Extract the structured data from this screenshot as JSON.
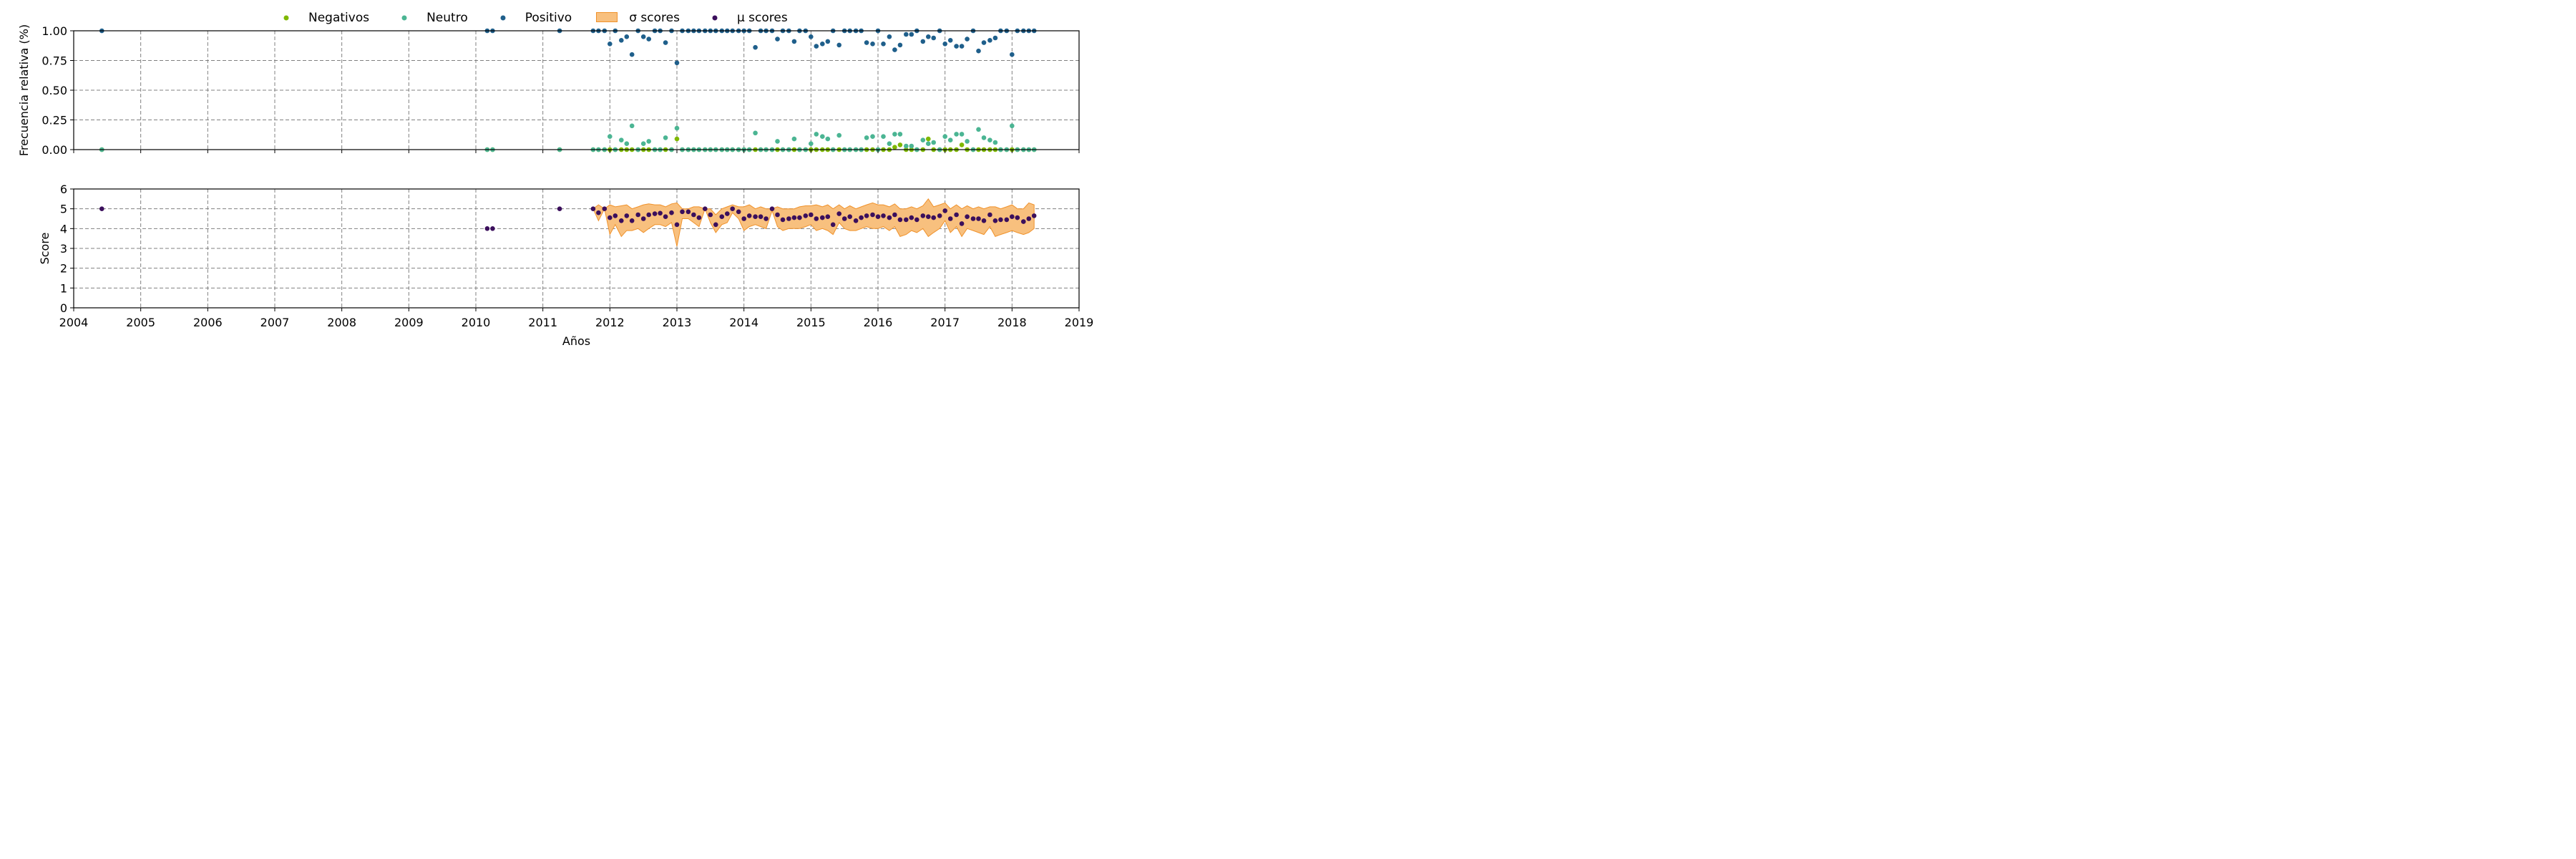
{
  "chart_data": [
    {
      "type": "scatter",
      "title": "",
      "ylabel": "Frecuencia relativa (%)",
      "xlabel": "",
      "xlim": [
        2004,
        2019
      ],
      "ylim": [
        0,
        1
      ],
      "yticks": [
        "0.00",
        "0.25",
        "0.50",
        "0.75",
        "1.00"
      ],
      "grid": true,
      "legend_position": "top-center",
      "series": [
        {
          "name": "Negativos",
          "color": "#7fb800",
          "x": [
            2004.42,
            2010.17,
            2010.25,
            2011.25,
            2011.75,
            2011.83,
            2011.92,
            2012.0,
            2012.08,
            2012.17,
            2012.25,
            2012.33,
            2012.42,
            2012.5,
            2012.58,
            2012.67,
            2012.75,
            2012.83,
            2012.92,
            2013.0,
            2013.08,
            2013.17,
            2013.25,
            2013.33,
            2013.42,
            2013.5,
            2013.58,
            2013.67,
            2013.75,
            2013.83,
            2013.92,
            2014.0,
            2014.08,
            2014.17,
            2014.25,
            2014.33,
            2014.42,
            2014.5,
            2014.58,
            2014.67,
            2014.75,
            2014.83,
            2014.92,
            2015.0,
            2015.08,
            2015.17,
            2015.25,
            2015.33,
            2015.42,
            2015.5,
            2015.58,
            2015.67,
            2015.75,
            2015.83,
            2015.92,
            2016.0,
            2016.08,
            2016.17,
            2016.25,
            2016.33,
            2016.42,
            2016.5,
            2016.58,
            2016.67,
            2016.75,
            2016.83,
            2016.92,
            2017.0,
            2017.08,
            2017.17,
            2017.25,
            2017.33,
            2017.42,
            2017.5,
            2017.58,
            2017.67,
            2017.75,
            2017.83,
            2017.92,
            2018.0,
            2018.08,
            2018.17,
            2018.25,
            2018.33
          ],
          "values": [
            0,
            0,
            0,
            0,
            0,
            0,
            0,
            0,
            0,
            0,
            0,
            0,
            0,
            0,
            0,
            0,
            0,
            0,
            0,
            0.09,
            0,
            0,
            0,
            0,
            0,
            0,
            0,
            0,
            0,
            0,
            0,
            0,
            0,
            0,
            0,
            0,
            0,
            0,
            0,
            0,
            0,
            0,
            0,
            0,
            0,
            0,
            0,
            0,
            0,
            0,
            0,
            0,
            0,
            0,
            0,
            0,
            0,
            0,
            0.02,
            0.04,
            0,
            0,
            0,
            0,
            0.09,
            0,
            0,
            0,
            0,
            0,
            0.04,
            0,
            0,
            0,
            0,
            0,
            0,
            0,
            0,
            0,
            0,
            0,
            0,
            0
          ]
        },
        {
          "name": "Neutro",
          "color": "#4bb593",
          "x": [
            2004.42,
            2010.17,
            2010.25,
            2011.25,
            2011.75,
            2011.83,
            2011.92,
            2012.0,
            2012.08,
            2012.17,
            2012.25,
            2012.33,
            2012.42,
            2012.5,
            2012.58,
            2012.67,
            2012.75,
            2012.83,
            2012.92,
            2013.0,
            2013.08,
            2013.17,
            2013.25,
            2013.33,
            2013.42,
            2013.5,
            2013.58,
            2013.67,
            2013.75,
            2013.83,
            2013.92,
            2014.0,
            2014.08,
            2014.17,
            2014.25,
            2014.33,
            2014.42,
            2014.5,
            2014.58,
            2014.67,
            2014.75,
            2014.83,
            2014.92,
            2015.0,
            2015.08,
            2015.17,
            2015.25,
            2015.33,
            2015.42,
            2015.5,
            2015.58,
            2015.67,
            2015.75,
            2015.83,
            2015.92,
            2016.0,
            2016.08,
            2016.17,
            2016.25,
            2016.33,
            2016.42,
            2016.5,
            2016.58,
            2016.67,
            2016.75,
            2016.83,
            2016.92,
            2017.0,
            2017.08,
            2017.17,
            2017.25,
            2017.33,
            2017.42,
            2017.5,
            2017.58,
            2017.67,
            2017.75,
            2017.83,
            2017.92,
            2018.0,
            2018.08,
            2018.17,
            2018.25,
            2018.33
          ],
          "values": [
            0,
            0,
            0,
            0,
            0,
            0,
            0,
            0.11,
            0,
            0.08,
            0.05,
            0.2,
            0,
            0.05,
            0.07,
            0,
            0,
            0.1,
            0,
            0.18,
            0,
            0,
            0,
            0,
            0,
            0,
            0,
            0,
            0,
            0,
            0,
            0,
            0,
            0.14,
            0,
            0,
            0,
            0.07,
            0,
            0,
            0.09,
            0,
            0,
            0.05,
            0.13,
            0.11,
            0.09,
            0,
            0.12,
            0,
            0,
            0,
            0,
            0.1,
            0.11,
            0,
            0.11,
            0.05,
            0.13,
            0.13,
            0.03,
            0.03,
            0,
            0.08,
            0.05,
            0.06,
            0,
            0.11,
            0.08,
            0.13,
            0.13,
            0.07,
            0,
            0.17,
            0.1,
            0.08,
            0.06,
            0,
            0,
            0.2,
            0,
            0,
            0,
            0
          ]
        },
        {
          "name": "Positivo",
          "color": "#1f5f8b",
          "x": [
            2004.42,
            2010.17,
            2010.25,
            2011.25,
            2011.75,
            2011.83,
            2011.92,
            2012.0,
            2012.08,
            2012.17,
            2012.25,
            2012.33,
            2012.42,
            2012.5,
            2012.58,
            2012.67,
            2012.75,
            2012.83,
            2012.92,
            2013.0,
            2013.08,
            2013.17,
            2013.25,
            2013.33,
            2013.42,
            2013.5,
            2013.58,
            2013.67,
            2013.75,
            2013.83,
            2013.92,
            2014.0,
            2014.08,
            2014.17,
            2014.25,
            2014.33,
            2014.42,
            2014.5,
            2014.58,
            2014.67,
            2014.75,
            2014.83,
            2014.92,
            2015.0,
            2015.08,
            2015.17,
            2015.25,
            2015.33,
            2015.42,
            2015.5,
            2015.58,
            2015.67,
            2015.75,
            2015.83,
            2015.92,
            2016.0,
            2016.08,
            2016.17,
            2016.25,
            2016.33,
            2016.42,
            2016.5,
            2016.58,
            2016.67,
            2016.75,
            2016.83,
            2016.92,
            2017.0,
            2017.08,
            2017.17,
            2017.25,
            2017.33,
            2017.42,
            2017.5,
            2017.58,
            2017.67,
            2017.75,
            2017.83,
            2017.92,
            2018.0,
            2018.08,
            2018.17,
            2018.25,
            2018.33
          ],
          "values": [
            1,
            1,
            1,
            1,
            1,
            1,
            1,
            0.89,
            1,
            0.92,
            0.95,
            0.8,
            1,
            0.95,
            0.93,
            1,
            1,
            0.9,
            1,
            0.73,
            1,
            1,
            1,
            1,
            1,
            1,
            1,
            1,
            1,
            1,
            1,
            1,
            1,
            0.86,
            1,
            1,
            1,
            0.93,
            1,
            1,
            0.91,
            1,
            1,
            0.95,
            0.87,
            0.89,
            0.91,
            1,
            0.88,
            1,
            1,
            1,
            1,
            0.9,
            0.89,
            1,
            0.89,
            0.95,
            0.84,
            0.88,
            0.97,
            0.97,
            1,
            0.91,
            0.95,
            0.94,
            1,
            0.89,
            0.92,
            0.87,
            0.87,
            0.93,
            1,
            0.83,
            0.9,
            0.92,
            0.94,
            1,
            1,
            0.8,
            1,
            1,
            1,
            1
          ]
        }
      ]
    },
    {
      "type": "scatter",
      "title": "",
      "ylabel": "Score",
      "xlabel": "Años",
      "xlim": [
        2004,
        2019
      ],
      "ylim": [
        0,
        6
      ],
      "yticks": [
        "0",
        "1",
        "2",
        "3",
        "4",
        "5",
        "6"
      ],
      "xticks": [
        "2004",
        "2005",
        "2006",
        "2007",
        "2008",
        "2009",
        "2010",
        "2011",
        "2012",
        "2013",
        "2014",
        "2015",
        "2016",
        "2017",
        "2018",
        "2019"
      ],
      "grid": true,
      "series": [
        {
          "name": "μ scores",
          "color": "#3b0f5c",
          "x": [
            2004.42,
            2010.17,
            2010.25,
            2011.25,
            2011.75,
            2011.83,
            2011.92,
            2012.0,
            2012.08,
            2012.17,
            2012.25,
            2012.33,
            2012.42,
            2012.5,
            2012.58,
            2012.67,
            2012.75,
            2012.83,
            2012.92,
            2013.0,
            2013.08,
            2013.17,
            2013.25,
            2013.33,
            2013.42,
            2013.5,
            2013.58,
            2013.67,
            2013.75,
            2013.83,
            2013.92,
            2014.0,
            2014.08,
            2014.17,
            2014.25,
            2014.33,
            2014.42,
            2014.5,
            2014.58,
            2014.67,
            2014.75,
            2014.83,
            2014.92,
            2015.0,
            2015.08,
            2015.17,
            2015.25,
            2015.33,
            2015.42,
            2015.5,
            2015.58,
            2015.67,
            2015.75,
            2015.83,
            2015.92,
            2016.0,
            2016.08,
            2016.17,
            2016.25,
            2016.33,
            2016.42,
            2016.5,
            2016.58,
            2016.67,
            2016.75,
            2016.83,
            2016.92,
            2017.0,
            2017.08,
            2017.17,
            2017.25,
            2017.33,
            2017.42,
            2017.5,
            2017.58,
            2017.67,
            2017.75,
            2017.83,
            2017.92,
            2018.0,
            2018.08,
            2018.17,
            2018.25,
            2018.33
          ],
          "values": [
            5,
            4,
            4,
            5,
            5,
            4.8,
            5,
            4.55,
            4.65,
            4.4,
            4.65,
            4.4,
            4.7,
            4.5,
            4.7,
            4.75,
            4.78,
            4.6,
            4.8,
            4.2,
            4.85,
            4.85,
            4.7,
            4.55,
            5,
            4.7,
            4.2,
            4.6,
            4.75,
            5,
            4.85,
            4.5,
            4.65,
            4.6,
            4.6,
            4.5,
            5,
            4.7,
            4.45,
            4.5,
            4.55,
            4.55,
            4.65,
            4.7,
            4.5,
            4.55,
            4.6,
            4.2,
            4.75,
            4.5,
            4.6,
            4.4,
            4.55,
            4.65,
            4.7,
            4.6,
            4.65,
            4.55,
            4.7,
            4.45,
            4.45,
            4.55,
            4.45,
            4.65,
            4.6,
            4.55,
            4.65,
            4.9,
            4.5,
            4.7,
            4.25,
            4.6,
            4.5,
            4.5,
            4.4,
            4.7,
            4.4,
            4.45,
            4.45,
            4.6,
            4.55,
            4.35,
            4.5,
            4.65
          ]
        },
        {
          "name": "σ scores",
          "color": "#f0922b",
          "x": [
            2011.75,
            2011.83,
            2011.92,
            2012.0,
            2012.08,
            2012.17,
            2012.25,
            2012.33,
            2012.42,
            2012.5,
            2012.58,
            2012.67,
            2012.75,
            2012.83,
            2012.92,
            2013.0,
            2013.08,
            2013.17,
            2013.25,
            2013.33,
            2013.42,
            2013.5,
            2013.58,
            2013.67,
            2013.75,
            2013.83,
            2013.92,
            2014.0,
            2014.08,
            2014.17,
            2014.25,
            2014.33,
            2014.42,
            2014.5,
            2014.58,
            2014.67,
            2014.75,
            2014.83,
            2014.92,
            2015.0,
            2015.08,
            2015.17,
            2015.25,
            2015.33,
            2015.42,
            2015.5,
            2015.58,
            2015.67,
            2015.75,
            2015.83,
            2015.92,
            2016.0,
            2016.08,
            2016.17,
            2016.25,
            2016.33,
            2016.42,
            2016.5,
            2016.58,
            2016.67,
            2016.75,
            2016.83,
            2016.92,
            2017.0,
            2017.08,
            2017.17,
            2017.25,
            2017.33,
            2017.42,
            2017.5,
            2017.58,
            2017.67,
            2017.75,
            2017.83,
            2017.92,
            2018.0,
            2018.08,
            2018.17,
            2018.25,
            2018.33
          ],
          "upper": [
            5,
            5.2,
            5,
            5.2,
            5.1,
            5.15,
            5.2,
            5.0,
            5.1,
            5.2,
            5.25,
            5.2,
            5.2,
            5.1,
            5.25,
            5.3,
            5.0,
            5.0,
            5.1,
            5.1,
            5.0,
            5.0,
            4.7,
            5.0,
            5.1,
            5.2,
            5.1,
            5.1,
            5.2,
            5.0,
            5.1,
            5.0,
            5.0,
            5.1,
            5.0,
            5.0,
            5.0,
            5.1,
            5.15,
            5.15,
            5.2,
            5.1,
            5.2,
            5.0,
            5.2,
            5.0,
            5.15,
            5.0,
            5.1,
            5.2,
            5.3,
            5.2,
            5.2,
            5.1,
            5.25,
            5.0,
            5.0,
            5.1,
            5.0,
            5.15,
            5.5,
            5.1,
            5.2,
            5.3,
            5.0,
            5.2,
            5.0,
            5.15,
            5.0,
            5.1,
            5.0,
            5.1,
            5.1,
            5.0,
            5.1,
            5.2,
            5.0,
            5.0,
            5.3,
            5.2
          ],
          "lower": [
            5,
            4.4,
            5,
            3.7,
            4.2,
            3.6,
            3.9,
            3.9,
            4.0,
            3.8,
            4.0,
            4.2,
            4.2,
            4.1,
            4.3,
            3.1,
            4.5,
            4.5,
            4.3,
            4.1,
            5.0,
            4.3,
            3.8,
            4.2,
            4.3,
            4.8,
            4.5,
            3.9,
            4.1,
            4.2,
            4.1,
            4.0,
            4.9,
            4.1,
            3.9,
            4.0,
            4.0,
            4.0,
            4.1,
            4.2,
            3.9,
            4.0,
            3.9,
            3.7,
            4.3,
            4.0,
            3.9,
            3.9,
            4.0,
            4.1,
            4.0,
            4.0,
            4.1,
            3.9,
            4.1,
            3.6,
            3.7,
            3.9,
            3.8,
            4.0,
            3.6,
            3.8,
            4.0,
            4.4,
            3.8,
            4.1,
            3.6,
            4.0,
            3.9,
            3.8,
            3.7,
            4.1,
            3.6,
            3.7,
            3.8,
            3.9,
            3.8,
            3.7,
            3.8,
            4.0
          ]
        }
      ]
    }
  ]
}
